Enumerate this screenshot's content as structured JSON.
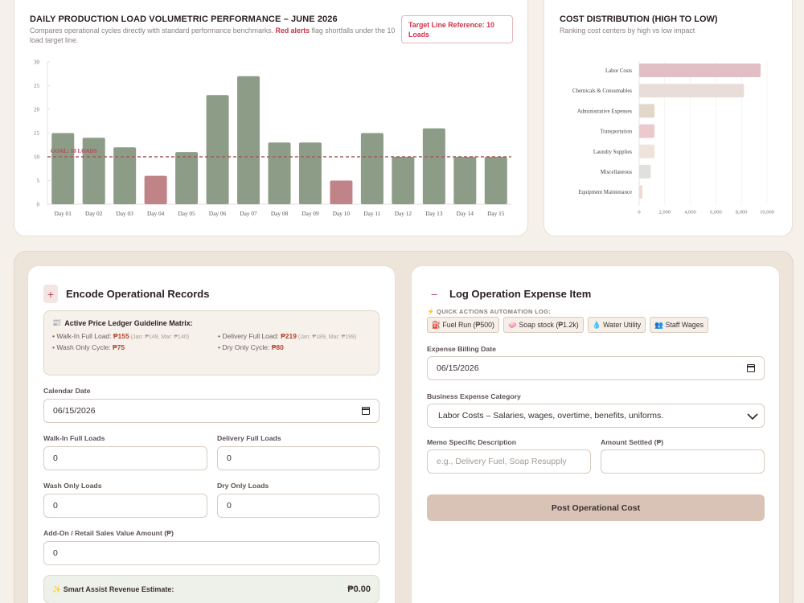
{
  "production_chart": {
    "title": "DAILY PRODUCTION LOAD VOLUMETRIC PERFORMANCE – JUNE 2026",
    "subtitle_prefix": "Compares operational cycles directly with standard performance benchmarks. ",
    "subtitle_alert": "Red alerts",
    "subtitle_suffix": " flag shortfalls under the 10 load target line.",
    "target_badge": "Target Line Reference: 10 Loads",
    "goal_label": "GOAL: 10 LOADS"
  },
  "cost_chart": {
    "title": "COST DISTRIBUTION (HIGH TO LOW)",
    "subtitle": "Ranking cost centers by high vs low impact"
  },
  "chart_data": [
    {
      "type": "bar",
      "categories": [
        "Day 01",
        "Day 02",
        "Day 03",
        "Day 04",
        "Day 05",
        "Day 06",
        "Day 07",
        "Day 08",
        "Day 09",
        "Day 10",
        "Day 11",
        "Day 12",
        "Day 13",
        "Day 14",
        "Day 15"
      ],
      "values": [
        15,
        14,
        12,
        6,
        11,
        23,
        27,
        13,
        13,
        5,
        15,
        10,
        16,
        10,
        10
      ],
      "target": 10,
      "ylim": [
        0,
        30
      ],
      "yticks": [
        0,
        5,
        10,
        15,
        20,
        25,
        30
      ],
      "colors": {
        "normal": "#8c9c87",
        "shortfall": "#c08488",
        "target_line": "#a05a5a"
      }
    },
    {
      "type": "bar",
      "orientation": "horizontal",
      "categories": [
        "Labor Costs",
        "Chemicals & Consumables",
        "Administrative Expenses",
        "Transportation",
        "Laundry Supplies",
        "Miscellaneous",
        "Equipment Maintenance"
      ],
      "values": [
        9500,
        8200,
        1200,
        1200,
        1200,
        900,
        250
      ],
      "xlim": [
        0,
        10000
      ],
      "xticks": [
        "0",
        "2,000",
        "4,000",
        "6,000",
        "8,000",
        "10,000"
      ],
      "colors": [
        "#e2bfc4",
        "#e9ddd9",
        "#e2d7c9",
        "#ecc9cd",
        "#f0e2dc",
        "#e0e0df",
        "#efdbd3"
      ]
    }
  ],
  "records": {
    "title": "Encode Operational Records",
    "icon": "plus-icon",
    "ledger": {
      "title": "Active Price Ledger Guideline Matrix:",
      "items": [
        {
          "label": "• Walk-In Full Load: ",
          "price": "₱155",
          "note": " (Jan: ₱149, Mar: ₱140)"
        },
        {
          "label": "• Delivery Full Load: ",
          "price": "₱219",
          "note": " (Jan: ₱189, Mar: ₱199)"
        },
        {
          "label": "• Wash Only Cycle: ",
          "price": "₱75",
          "note": ""
        },
        {
          "label": "• Dry Only Cycle: ",
          "price": "₱80",
          "note": ""
        }
      ]
    },
    "calendar_label": "Calendar Date",
    "calendar_value": "06/15/2026",
    "walkin_label": "Walk-In Full Loads",
    "walkin_value": "0",
    "delivery_label": "Delivery Full Loads",
    "delivery_value": "0",
    "wash_label": "Wash Only Loads",
    "wash_value": "0",
    "dry_label": "Dry Only Loads",
    "dry_value": "0",
    "addon_label": "Add-On / Retail Sales Value Amount (₱)",
    "addon_value": "0",
    "smart_label": "✨ Smart Assist Revenue Estimate:",
    "smart_value": "₱0.00"
  },
  "expense": {
    "title": "Log Operation Expense Item",
    "icon": "minus-icon",
    "quick_label": "⚡ QUICK ACTIONS AUTOMATION LOG:",
    "quick_actions": [
      "⛽ Fuel Run (₱500)",
      "🧼 Soap stock (₱1.2k)",
      "💧 Water Utility",
      "👥 Staff Wages"
    ],
    "date_label": "Expense Billing Date",
    "date_value": "06/15/2026",
    "category_label": "Business Expense Category",
    "category_value": "Labor Costs – Salaries, wages, overtime, benefits, uniforms.",
    "memo_label": "Memo Specific Description",
    "memo_placeholder": "e.g., Delivery Fuel, Soap Resupply",
    "amount_label": "Amount Settled (₱)",
    "amount_value": "",
    "post_button": "Post Operational Cost"
  }
}
